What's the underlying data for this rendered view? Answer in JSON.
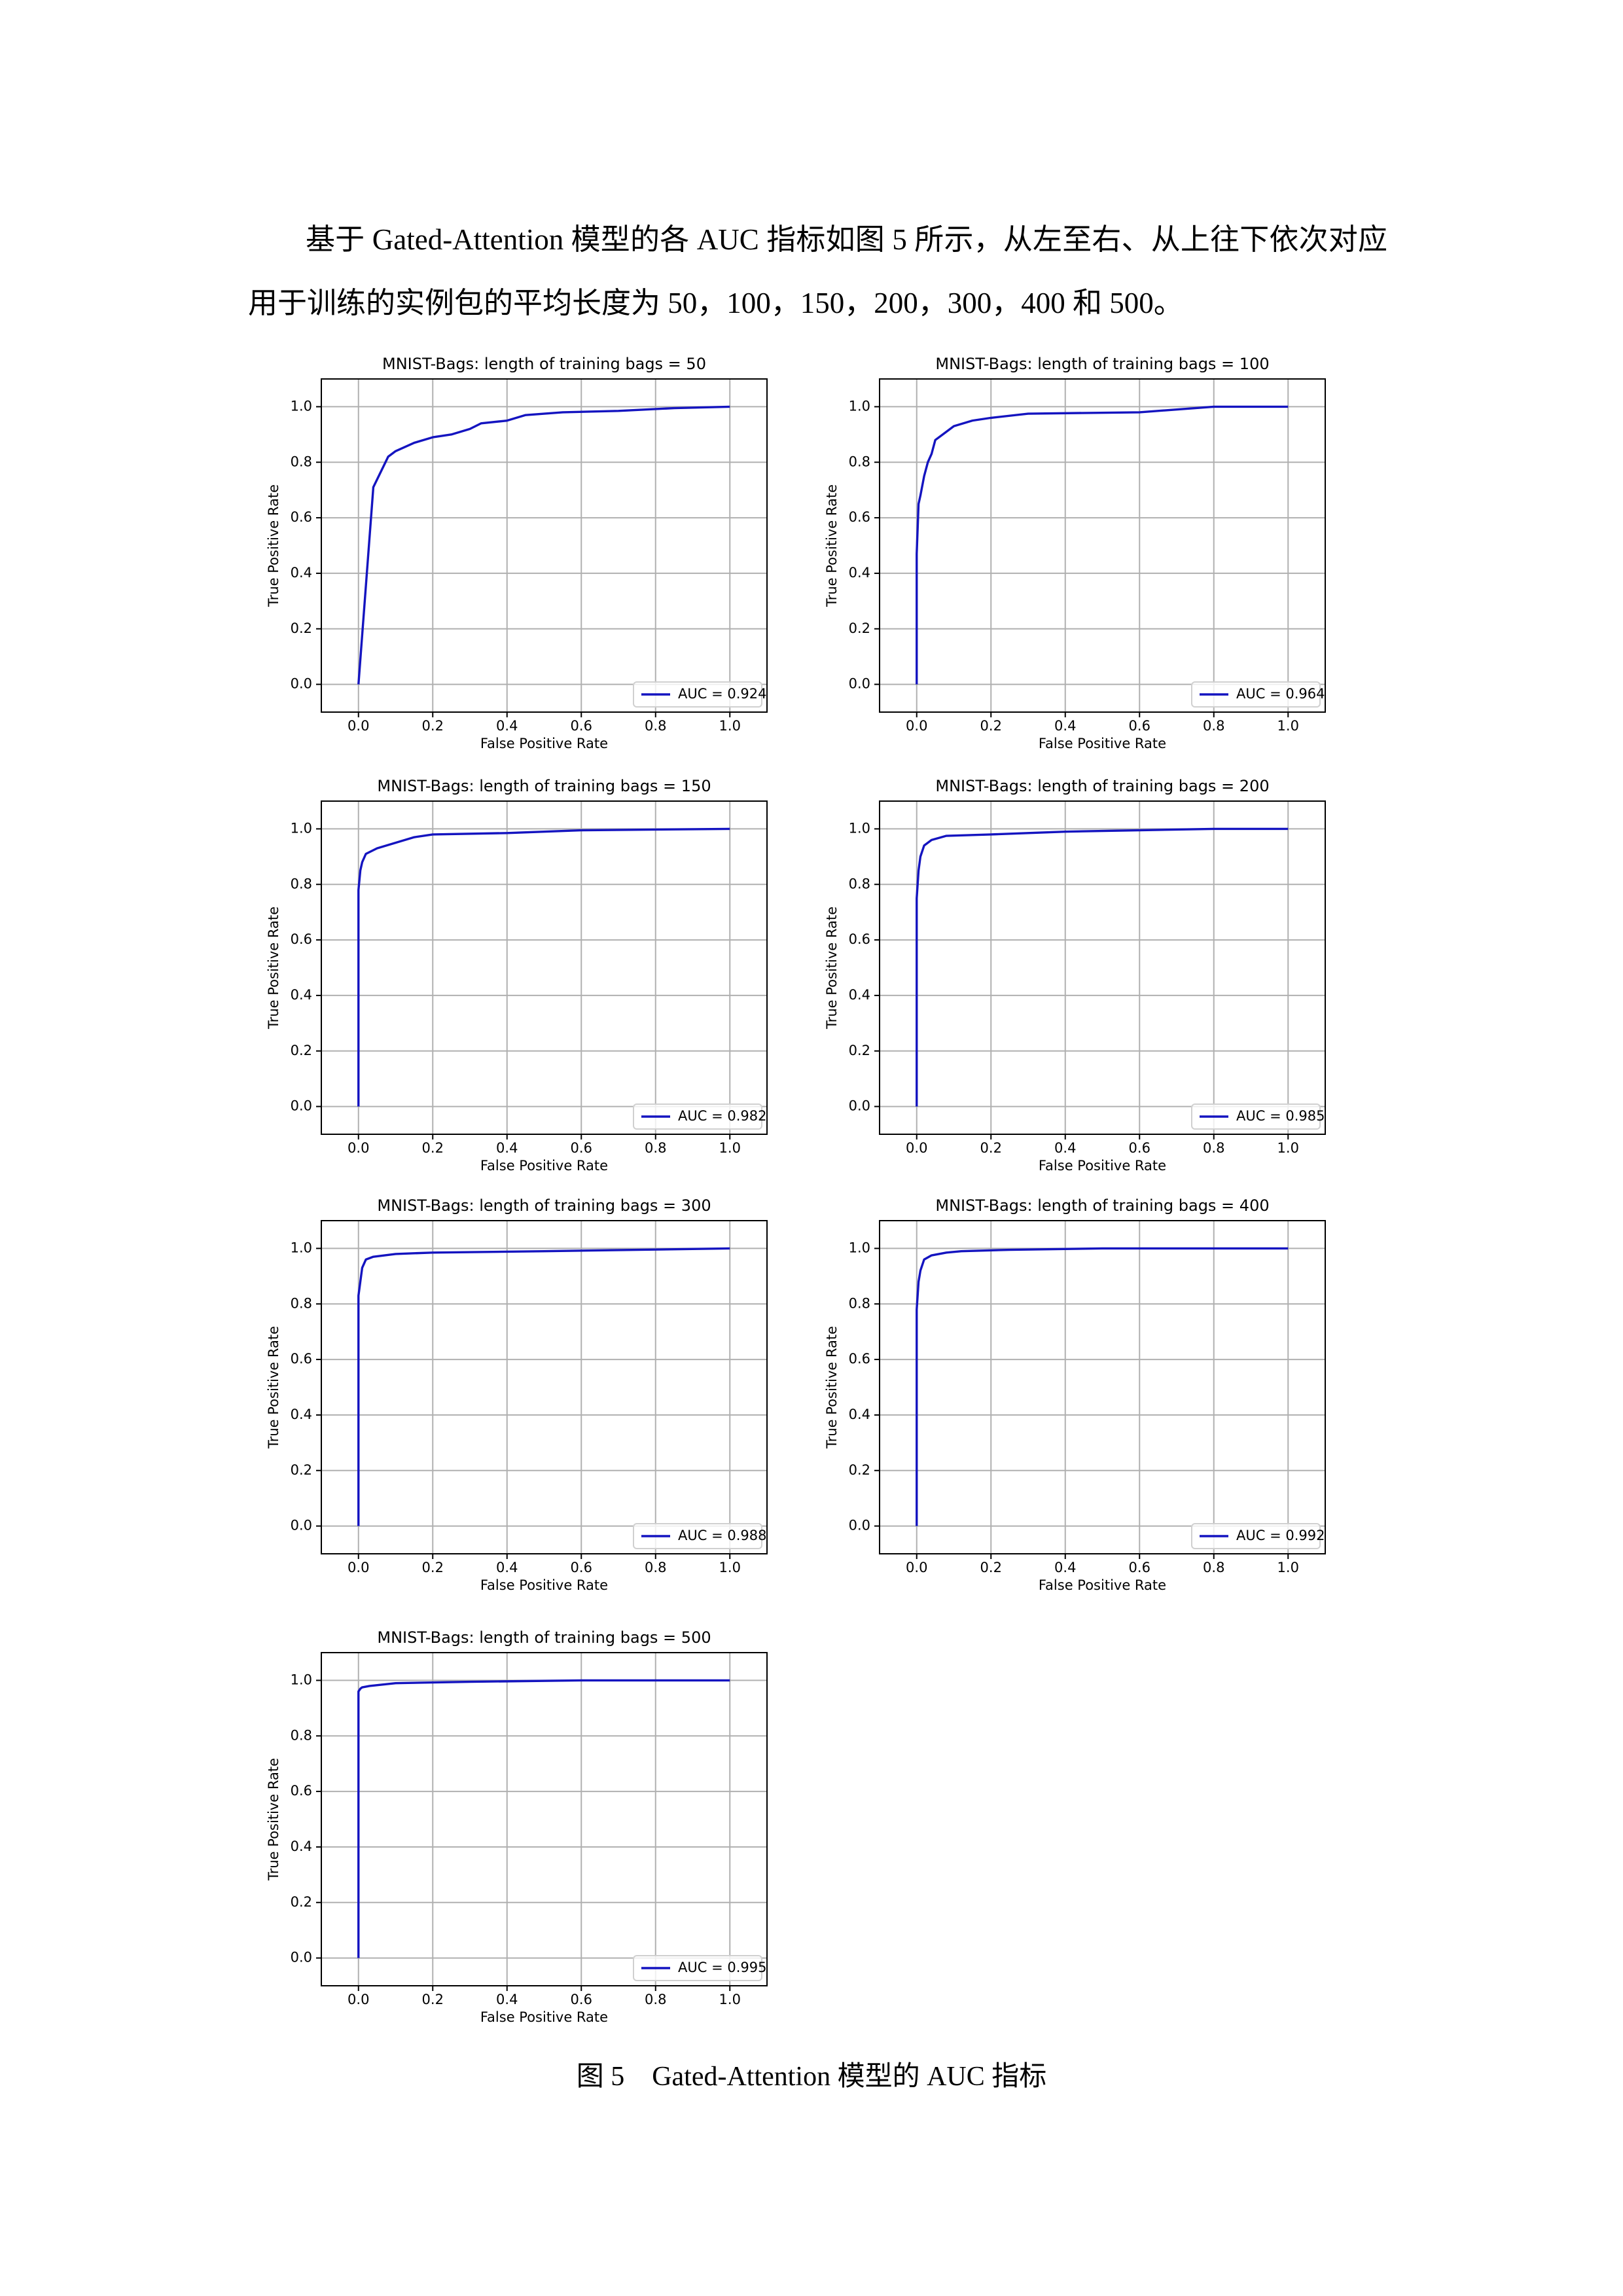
{
  "paragraph": "基于 Gated-Attention 模型的各 AUC 指标如图 5 所示，从左至右、从上往下依次对应用于训练的实例包的平均长度为 50，100，150，200，300，400 和 500。",
  "chart_data": [
    {
      "type": "line",
      "title": "MNIST-Bags: length of training bags = 50",
      "xlabel": "False Positive Rate",
      "ylabel": "True Positive Rate",
      "x": [
        0,
        0.04,
        0.08,
        0.1,
        0.15,
        0.2,
        0.25,
        0.3,
        0.33,
        0.4,
        0.45,
        0.55,
        0.7,
        0.85,
        1.0
      ],
      "series": [
        {
          "name": "AUC = 0.924",
          "color": "#1414c0",
          "values": [
            0,
            0.71,
            0.82,
            0.84,
            0.87,
            0.89,
            0.9,
            0.92,
            0.94,
            0.95,
            0.97,
            0.98,
            0.985,
            0.995,
            1.0
          ]
        }
      ],
      "xlim": [
        -0.1,
        1.1
      ],
      "ylim": [
        -0.1,
        1.1
      ],
      "xticks": [
        {
          "value": 0,
          "label": "0.0"
        },
        0.2,
        0.4,
        0.6,
        0.8,
        {
          "value": 1,
          "label": "1.0"
        }
      ],
      "yticks": [
        {
          "value": 0,
          "label": "0.0"
        },
        0.2,
        0.4,
        0.6,
        0.8,
        {
          "value": 1,
          "label": "1.0"
        }
      ],
      "grid": true,
      "legend": "lower right"
    },
    {
      "type": "line",
      "title": "MNIST-Bags: length of training bags = 100",
      "xlabel": "False Positive Rate",
      "ylabel": "True Positive Rate",
      "x": [
        0,
        0,
        0.005,
        0.01,
        0.02,
        0.03,
        0.04,
        0.05,
        0.07,
        0.1,
        0.15,
        0.2,
        0.3,
        0.6,
        0.7,
        0.8,
        1.0
      ],
      "series": [
        {
          "name": "AUC = 0.964",
          "color": "#1414c0",
          "values": [
            0,
            0.47,
            0.65,
            0.68,
            0.75,
            0.8,
            0.83,
            0.88,
            0.9,
            0.93,
            0.95,
            0.96,
            0.975,
            0.98,
            0.99,
            1.0,
            1.0
          ]
        }
      ],
      "xlim": [
        -0.1,
        1.1
      ],
      "ylim": [
        -0.1,
        1.1
      ],
      "xticks": [
        {
          "value": 0,
          "label": "0.0"
        },
        0.2,
        0.4,
        0.6,
        0.8,
        {
          "value": 1,
          "label": "1.0"
        }
      ],
      "yticks": [
        {
          "value": 0,
          "label": "0.0"
        },
        0.2,
        0.4,
        0.6,
        0.8,
        {
          "value": 1,
          "label": "1.0"
        }
      ],
      "grid": true,
      "legend": "lower right"
    },
    {
      "type": "line",
      "title": "MNIST-Bags: length of training bags = 150",
      "xlabel": "False Positive Rate",
      "ylabel": "True Positive Rate",
      "x": [
        0,
        0,
        0.005,
        0.01,
        0.02,
        0.05,
        0.1,
        0.15,
        0.2,
        0.4,
        0.6,
        1.0
      ],
      "series": [
        {
          "name": "AUC = 0.982",
          "color": "#1414c0",
          "values": [
            0,
            0.78,
            0.85,
            0.88,
            0.91,
            0.93,
            0.95,
            0.97,
            0.98,
            0.985,
            0.995,
            1.0
          ]
        }
      ],
      "xlim": [
        -0.1,
        1.1
      ],
      "ylim": [
        -0.1,
        1.1
      ],
      "xticks": [
        {
          "value": 0,
          "label": "0.0"
        },
        0.2,
        0.4,
        0.6,
        0.8,
        {
          "value": 1,
          "label": "1.0"
        }
      ],
      "yticks": [
        {
          "value": 0,
          "label": "0.0"
        },
        0.2,
        0.4,
        0.6,
        0.8,
        {
          "value": 1,
          "label": "1.0"
        }
      ],
      "grid": true,
      "legend": "lower right"
    },
    {
      "type": "line",
      "title": "MNIST-Bags: length of training bags = 200",
      "xlabel": "False Positive Rate",
      "ylabel": "True Positive Rate",
      "x": [
        0,
        0,
        0.005,
        0.01,
        0.02,
        0.04,
        0.08,
        0.2,
        0.4,
        0.8,
        1.0
      ],
      "series": [
        {
          "name": "AUC = 0.985",
          "color": "#1414c0",
          "values": [
            0,
            0.75,
            0.85,
            0.9,
            0.94,
            0.96,
            0.975,
            0.98,
            0.99,
            1.0,
            1.0
          ]
        }
      ],
      "xlim": [
        -0.1,
        1.1
      ],
      "ylim": [
        -0.1,
        1.1
      ],
      "xticks": [
        {
          "value": 0,
          "label": "0.0"
        },
        0.2,
        0.4,
        0.6,
        0.8,
        {
          "value": 1,
          "label": "1.0"
        }
      ],
      "yticks": [
        {
          "value": 0,
          "label": "0.0"
        },
        0.2,
        0.4,
        0.6,
        0.8,
        {
          "value": 1,
          "label": "1.0"
        }
      ],
      "grid": true,
      "legend": "lower right"
    },
    {
      "type": "line",
      "title": "MNIST-Bags: length of training bags = 300",
      "xlabel": "False Positive Rate",
      "ylabel": "True Positive Rate",
      "x": [
        0,
        0,
        0.005,
        0.01,
        0.02,
        0.04,
        0.1,
        0.2,
        0.5,
        1.0
      ],
      "series": [
        {
          "name": "AUC = 0.988",
          "color": "#1414c0",
          "values": [
            0,
            0.83,
            0.88,
            0.93,
            0.96,
            0.97,
            0.98,
            0.985,
            0.99,
            1.0
          ]
        }
      ],
      "xlim": [
        -0.1,
        1.1
      ],
      "ylim": [
        -0.1,
        1.1
      ],
      "xticks": [
        {
          "value": 0,
          "label": "0.0"
        },
        0.2,
        0.4,
        0.6,
        0.8,
        {
          "value": 1,
          "label": "1.0"
        }
      ],
      "yticks": [
        {
          "value": 0,
          "label": "0.0"
        },
        0.2,
        0.4,
        0.6,
        0.8,
        {
          "value": 1,
          "label": "1.0"
        }
      ],
      "grid": true,
      "legend": "lower right"
    },
    {
      "type": "line",
      "title": "MNIST-Bags: length of training bags = 400",
      "xlabel": "False Positive Rate",
      "ylabel": "True Positive Rate",
      "x": [
        0,
        0,
        0.005,
        0.01,
        0.02,
        0.04,
        0.08,
        0.12,
        0.25,
        0.5,
        1.0
      ],
      "series": [
        {
          "name": "AUC = 0.992",
          "color": "#1414c0",
          "values": [
            0,
            0.78,
            0.88,
            0.92,
            0.96,
            0.975,
            0.985,
            0.99,
            0.995,
            1.0,
            1.0
          ]
        }
      ],
      "xlim": [
        -0.1,
        1.1
      ],
      "ylim": [
        -0.1,
        1.1
      ],
      "xticks": [
        {
          "value": 0,
          "label": "0.0"
        },
        0.2,
        0.4,
        0.6,
        0.8,
        {
          "value": 1,
          "label": "1.0"
        }
      ],
      "yticks": [
        {
          "value": 0,
          "label": "0.0"
        },
        0.2,
        0.4,
        0.6,
        0.8,
        {
          "value": 1,
          "label": "1.0"
        }
      ],
      "grid": true,
      "legend": "lower right"
    },
    {
      "type": "line",
      "title": "MNIST-Bags: length of training bags = 500",
      "xlabel": "False Positive Rate",
      "ylabel": "True Positive Rate",
      "x": [
        0,
        0,
        0.005,
        0.01,
        0.03,
        0.1,
        0.3,
        0.6,
        1.0
      ],
      "series": [
        {
          "name": "AUC = 0.995",
          "color": "#1414c0",
          "values": [
            0,
            0.96,
            0.97,
            0.975,
            0.98,
            0.99,
            0.995,
            1.0,
            1.0
          ]
        }
      ],
      "xlim": [
        -0.1,
        1.1
      ],
      "ylim": [
        -0.1,
        1.1
      ],
      "xticks": [
        {
          "value": 0,
          "label": "0.0"
        },
        0.2,
        0.4,
        0.6,
        0.8,
        {
          "value": 1,
          "label": "1.0"
        }
      ],
      "yticks": [
        {
          "value": 0,
          "label": "0.0"
        },
        0.2,
        0.4,
        0.6,
        0.8,
        {
          "value": 1,
          "label": "1.0"
        }
      ],
      "grid": true,
      "legend": "lower right"
    }
  ],
  "caption": "图 5    Gated-Attention 模型的 AUC 指标"
}
